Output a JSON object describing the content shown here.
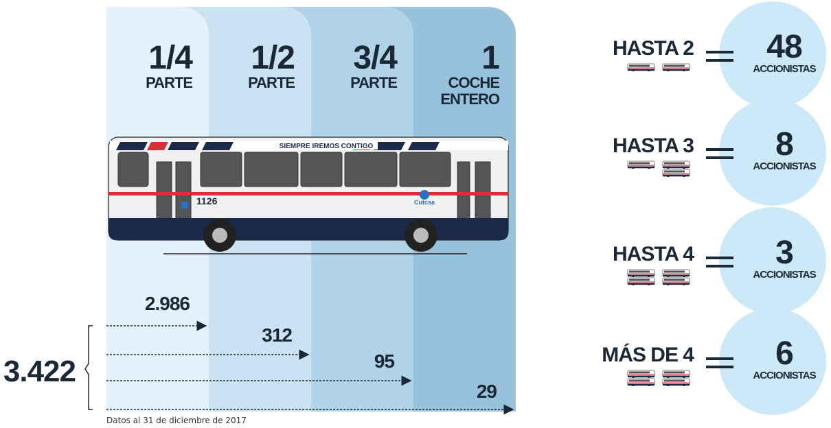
{
  "columns": [
    {
      "fraction": "1/4",
      "label": [
        "PARTE"
      ],
      "count": "2.986"
    },
    {
      "fraction": "1/2",
      "label": [
        "PARTE"
      ],
      "count": "312"
    },
    {
      "fraction": "3/4",
      "label": [
        "PARTE"
      ],
      "count": "95"
    },
    {
      "fraction": "1",
      "label": [
        "COCHE",
        "ENTERO"
      ],
      "count": "29"
    }
  ],
  "bus": {
    "slogan": "SIEMPRE IREMOS CONTIGO",
    "number": "1126",
    "brand": "Cutcsa"
  },
  "total": "3.422",
  "footnote": "Datos al 31 de diciembre de 2017",
  "groups": [
    {
      "label": "HASTA 2",
      "value": "48",
      "unit": "ACCIONISTAS",
      "bus_icons": 2
    },
    {
      "label": "HASTA 3",
      "value": "8",
      "unit": "ACCIONISTAS",
      "bus_icons": 3
    },
    {
      "label": "HASTA 4",
      "value": "3",
      "unit": "ACCIONISTAS",
      "bus_icons": 4
    },
    {
      "label": "MÁS DE 4",
      "value": "6",
      "unit": "ACCIONISTAS",
      "bus_icons": 4
    }
  ]
}
